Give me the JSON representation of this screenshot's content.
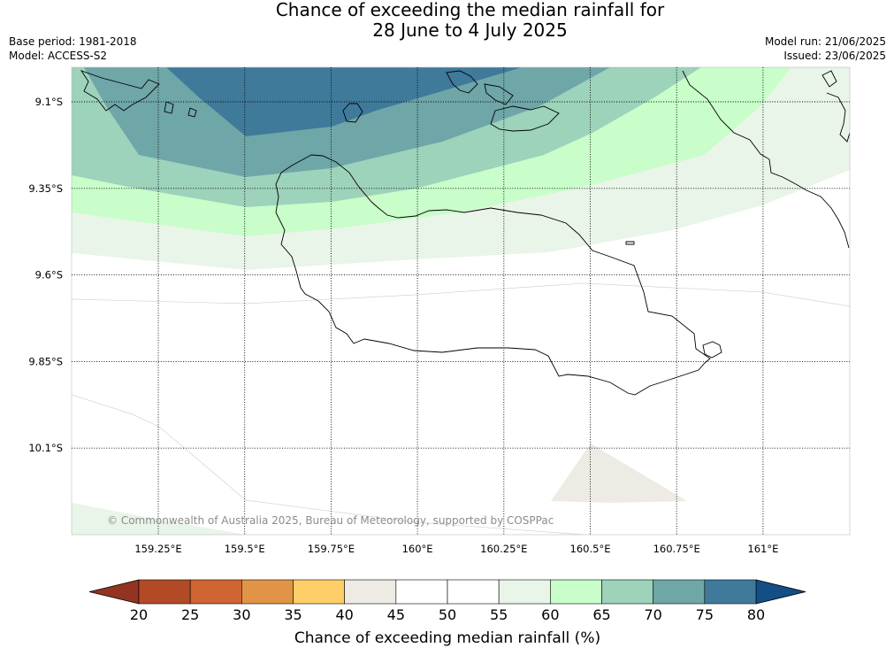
{
  "header": {
    "title_line1": "Chance of exceeding the median rainfall for",
    "title_line2": "28 June to 4 July 2025",
    "base_period": "Base period: 1981-2018",
    "model": "Model: ACCESS-S2",
    "model_run": "Model run: 21/06/2025",
    "issued": "Issued: 23/06/2025"
  },
  "map": {
    "lat_ticks": [
      "9.1°S",
      "9.35°S",
      "9.6°S",
      "9.85°S",
      "10.1°S"
    ],
    "lon_ticks": [
      "159.25°E",
      "159.5°E",
      "159.75°E",
      "160°E",
      "160.25°E",
      "160.5°E",
      "160.75°E",
      "161°E"
    ],
    "copyright": "© Commonwealth of Australia 2025, Bureau of Meteorology, supported by COSPPac"
  },
  "colorbar": {
    "title": "Chance of exceeding median rainfall (%)",
    "labels": [
      "20",
      "25",
      "30",
      "35",
      "40",
      "45",
      "50",
      "55",
      "60",
      "65",
      "70",
      "75",
      "80"
    ],
    "colors": [
      "#b24a26",
      "#cf6532",
      "#e29446",
      "#fecf68",
      "#eeebe5",
      "#ffffff",
      "#ffffff",
      "#e9f5e8",
      "#c9fdc9",
      "#9dd2bb",
      "#6fa6a8",
      "#3f7a9b"
    ],
    "low_extend_color": "#923421",
    "high_extend_color": "#134e87"
  }
}
